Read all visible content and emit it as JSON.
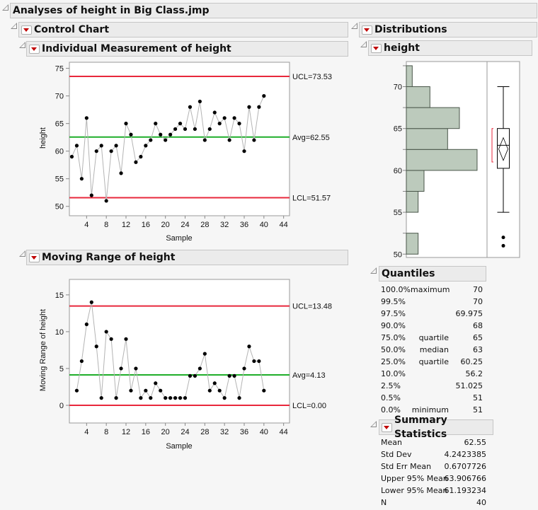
{
  "title": "Analyses of height in Big Class.jmp",
  "control_chart": {
    "title": "Control Chart",
    "individual": {
      "title": "Individual Measurement of height",
      "ylabel": "height",
      "xlabel": "Sample"
    },
    "moving_range": {
      "title": "Moving Range of height",
      "ylabel": "Moving Range of height",
      "xlabel": "Sample"
    }
  },
  "distributions": {
    "title": "Distributions",
    "variable": "height",
    "quantiles": {
      "title": "Quantiles",
      "rows": [
        {
          "pct": "100.0%",
          "label": "maximum",
          "value": "70"
        },
        {
          "pct": "99.5%",
          "label": "",
          "value": "70"
        },
        {
          "pct": "97.5%",
          "label": "",
          "value": "69.975"
        },
        {
          "pct": "90.0%",
          "label": "",
          "value": "68"
        },
        {
          "pct": "75.0%",
          "label": "quartile",
          "value": "65"
        },
        {
          "pct": "50.0%",
          "label": "median",
          "value": "63"
        },
        {
          "pct": "25.0%",
          "label": "quartile",
          "value": "60.25"
        },
        {
          "pct": "10.0%",
          "label": "",
          "value": "56.2"
        },
        {
          "pct": "2.5%",
          "label": "",
          "value": "51.025"
        },
        {
          "pct": "0.5%",
          "label": "",
          "value": "51"
        },
        {
          "pct": "0.0%",
          "label": "minimum",
          "value": "51"
        }
      ]
    },
    "summary": {
      "title": "Summary Statistics",
      "rows": [
        {
          "label": "Mean",
          "value": "62.55"
        },
        {
          "label": "Std Dev",
          "value": "4.2423385"
        },
        {
          "label": "Std Err Mean",
          "value": "0.6707726"
        },
        {
          "label": "Upper 95% Mean",
          "value": "63.906766"
        },
        {
          "label": "Lower 95% Mean",
          "value": "61.193234"
        },
        {
          "label": "N",
          "value": "40"
        }
      ]
    }
  },
  "chart_data": [
    {
      "type": "line",
      "name": "individual",
      "xlabel": "Sample",
      "ylabel": "height",
      "x": [
        1,
        2,
        3,
        4,
        5,
        6,
        7,
        8,
        9,
        10,
        11,
        12,
        13,
        14,
        15,
        16,
        17,
        18,
        19,
        20,
        21,
        22,
        23,
        24,
        25,
        26,
        27,
        28,
        29,
        30,
        31,
        32,
        33,
        34,
        35,
        36,
        37,
        38,
        39,
        40
      ],
      "values": [
        59,
        61,
        55,
        66,
        52,
        60,
        61,
        51,
        60,
        61,
        56,
        65,
        63,
        58,
        59,
        61,
        62,
        65,
        63,
        62,
        63,
        64,
        65,
        64,
        68,
        64,
        69,
        62,
        64,
        67,
        65,
        66,
        62,
        66,
        65,
        60,
        68,
        62,
        68,
        70
      ],
      "xticks": [
        4,
        8,
        12,
        16,
        20,
        24,
        28,
        32,
        36,
        40,
        44
      ],
      "yticks": [
        50,
        55,
        60,
        65,
        70,
        75
      ],
      "xlim": [
        0.5,
        45.2
      ],
      "ylim": [
        48.3,
        76.1
      ],
      "limits": [
        {
          "label": "UCL=73.53",
          "value": 73.53,
          "color": "#e8283c"
        },
        {
          "label": "Avg=62.55",
          "value": 62.55,
          "color": "#1fae2a"
        },
        {
          "label": "LCL=51.57",
          "value": 51.57,
          "color": "#e8283c"
        }
      ]
    },
    {
      "type": "line",
      "name": "moving_range",
      "xlabel": "Sample",
      "ylabel": "Moving Range of height",
      "x": [
        2,
        3,
        4,
        5,
        6,
        7,
        8,
        9,
        10,
        11,
        12,
        13,
        14,
        15,
        16,
        17,
        18,
        19,
        20,
        21,
        22,
        23,
        24,
        25,
        26,
        27,
        28,
        29,
        30,
        31,
        32,
        33,
        34,
        35,
        36,
        37,
        38,
        39,
        40
      ],
      "values": [
        2,
        6,
        11,
        14,
        8,
        1,
        10,
        9,
        1,
        5,
        9,
        2,
        5,
        1,
        2,
        1,
        3,
        2,
        1,
        1,
        1,
        1,
        1,
        4,
        4,
        5,
        7,
        2,
        3,
        2,
        1,
        4,
        4,
        1,
        5,
        8,
        6,
        6,
        2
      ],
      "xticks": [
        4,
        8,
        12,
        16,
        20,
        24,
        28,
        32,
        36,
        40,
        44
      ],
      "yticks": [
        0,
        5,
        10,
        15
      ],
      "xlim": [
        0.5,
        45.2
      ],
      "ylim": [
        -2.4,
        17.1
      ],
      "limits": [
        {
          "label": "UCL=13.48",
          "value": 13.48,
          "color": "#e8283c"
        },
        {
          "label": "Avg=4.13",
          "value": 4.13,
          "color": "#1fae2a"
        },
        {
          "label": "LCL=0.00",
          "value": 0,
          "color": "#e8283c"
        }
      ]
    },
    {
      "type": "bar",
      "name": "histogram",
      "orientation": "horizontal",
      "bin_edges": [
        50,
        52.5,
        55,
        57.5,
        60,
        62.5,
        65,
        67.5,
        70,
        72.5
      ],
      "counts": [
        2,
        0,
        2,
        3,
        12,
        7,
        9,
        4,
        1
      ],
      "yticks": [
        50,
        55,
        60,
        65,
        70
      ],
      "ylim": [
        49.6,
        73.0
      ],
      "bar_color": "#bccabc",
      "boxplot": {
        "min_whisker": 55,
        "q1": 60.25,
        "median": 63,
        "q3": 65,
        "max_whisker": 70,
        "outliers": [
          51,
          52
        ],
        "mean_ci": [
          61.193234,
          63.906766
        ],
        "mean": 62.55,
        "shortest_half": [
          61,
          65
        ]
      }
    }
  ]
}
